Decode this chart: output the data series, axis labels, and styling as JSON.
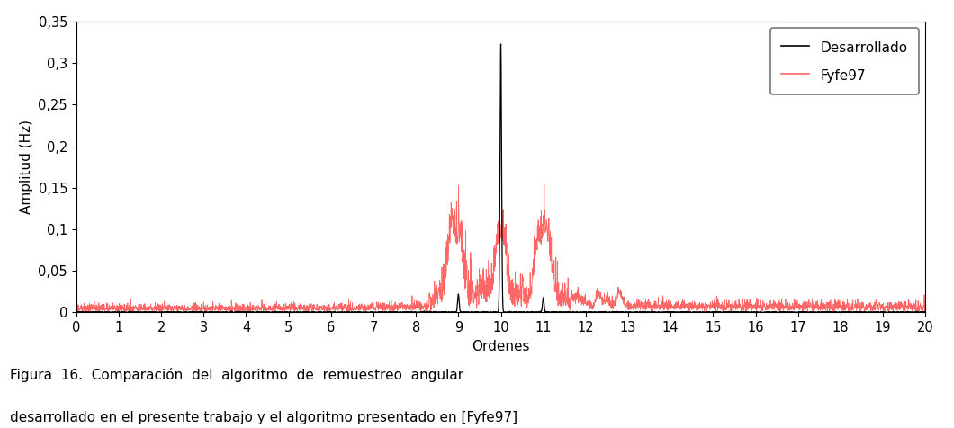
{
  "title": "",
  "xlabel": "Ordenes",
  "ylabel": "Amplitud (Hz)",
  "xlim": [
    0,
    20
  ],
  "ylim": [
    0,
    0.35
  ],
  "yticks": [
    0,
    0.05,
    0.1,
    0.15,
    0.2,
    0.25,
    0.3,
    0.35
  ],
  "xticks": [
    0,
    1,
    2,
    3,
    4,
    5,
    6,
    7,
    8,
    9,
    10,
    11,
    12,
    13,
    14,
    15,
    16,
    17,
    18,
    19,
    20
  ],
  "ytick_labels": [
    "0",
    "0,05",
    "0,1",
    "0,15",
    "0,2",
    "0,25",
    "0,3",
    "0,35"
  ],
  "legend_entries": [
    "Desarrollado",
    "Fyfe97"
  ],
  "line_color_desarrollado": "#000000",
  "line_color_fyfe97": "#ff6666",
  "caption_line1": "Figura  16.  Comparación  del  algoritmo  de  remuestreo  angular",
  "caption_line2": "desarrollado en el presente trabajo y el algoritmo presentado en [Fyfe97]",
  "background_color": "#ffffff",
  "fig_width": 10.6,
  "fig_height": 4.76,
  "dpi": 100
}
